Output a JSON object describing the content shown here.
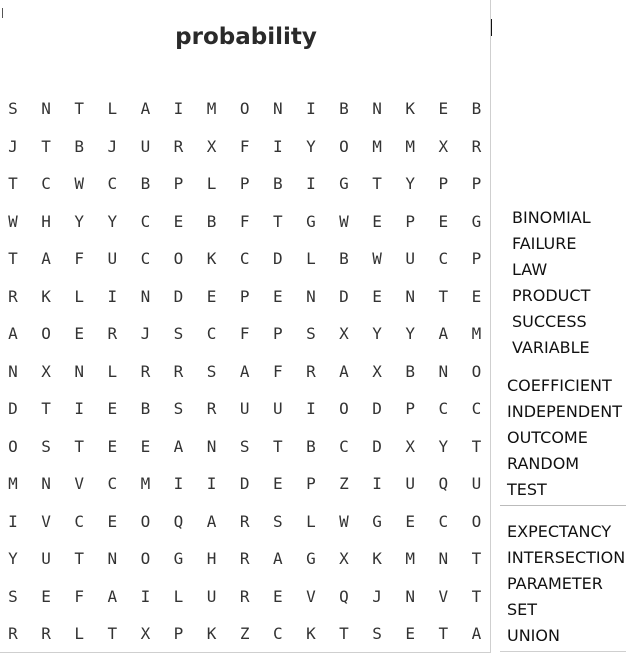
{
  "puzzle": {
    "title": "probability",
    "grid": [
      "SNTLAIMONIBNKEB",
      "JTBJURXFIYOMMXR",
      "TCWCBPLPBIGTYPP",
      "WHYYCEBFTGWEPEG",
      "TAFUCOKCDLBWUCP",
      "RKLINDEPENDENTE",
      "AOERJSCFPSXYYAM",
      "NXNLRRSAFRAXBNO",
      "DTIEBSRUUIODPCC",
      "OSTEEANSTBCDXYT",
      "MNVCMIIDEPZIUQU",
      "IVCEOQARSLWGECO",
      "YUTNOGHRAGXKMNT",
      "SEFAILUREVQJNVT",
      "RRLTXPKZCKTSETA"
    ]
  },
  "word_list": {
    "groups": [
      [
        "BINOMIAL",
        "FAILURE",
        "LAW",
        "PRODUCT",
        "SUCCESS",
        "VARIABLE"
      ],
      [
        "COEFFICIENT",
        "INDEPENDENT",
        "OUTCOME",
        "RANDOM",
        "TEST"
      ],
      [
        "EXPECTANCY",
        "INTERSECTION",
        "PARAMETER",
        "SET",
        "UNION"
      ]
    ]
  }
}
